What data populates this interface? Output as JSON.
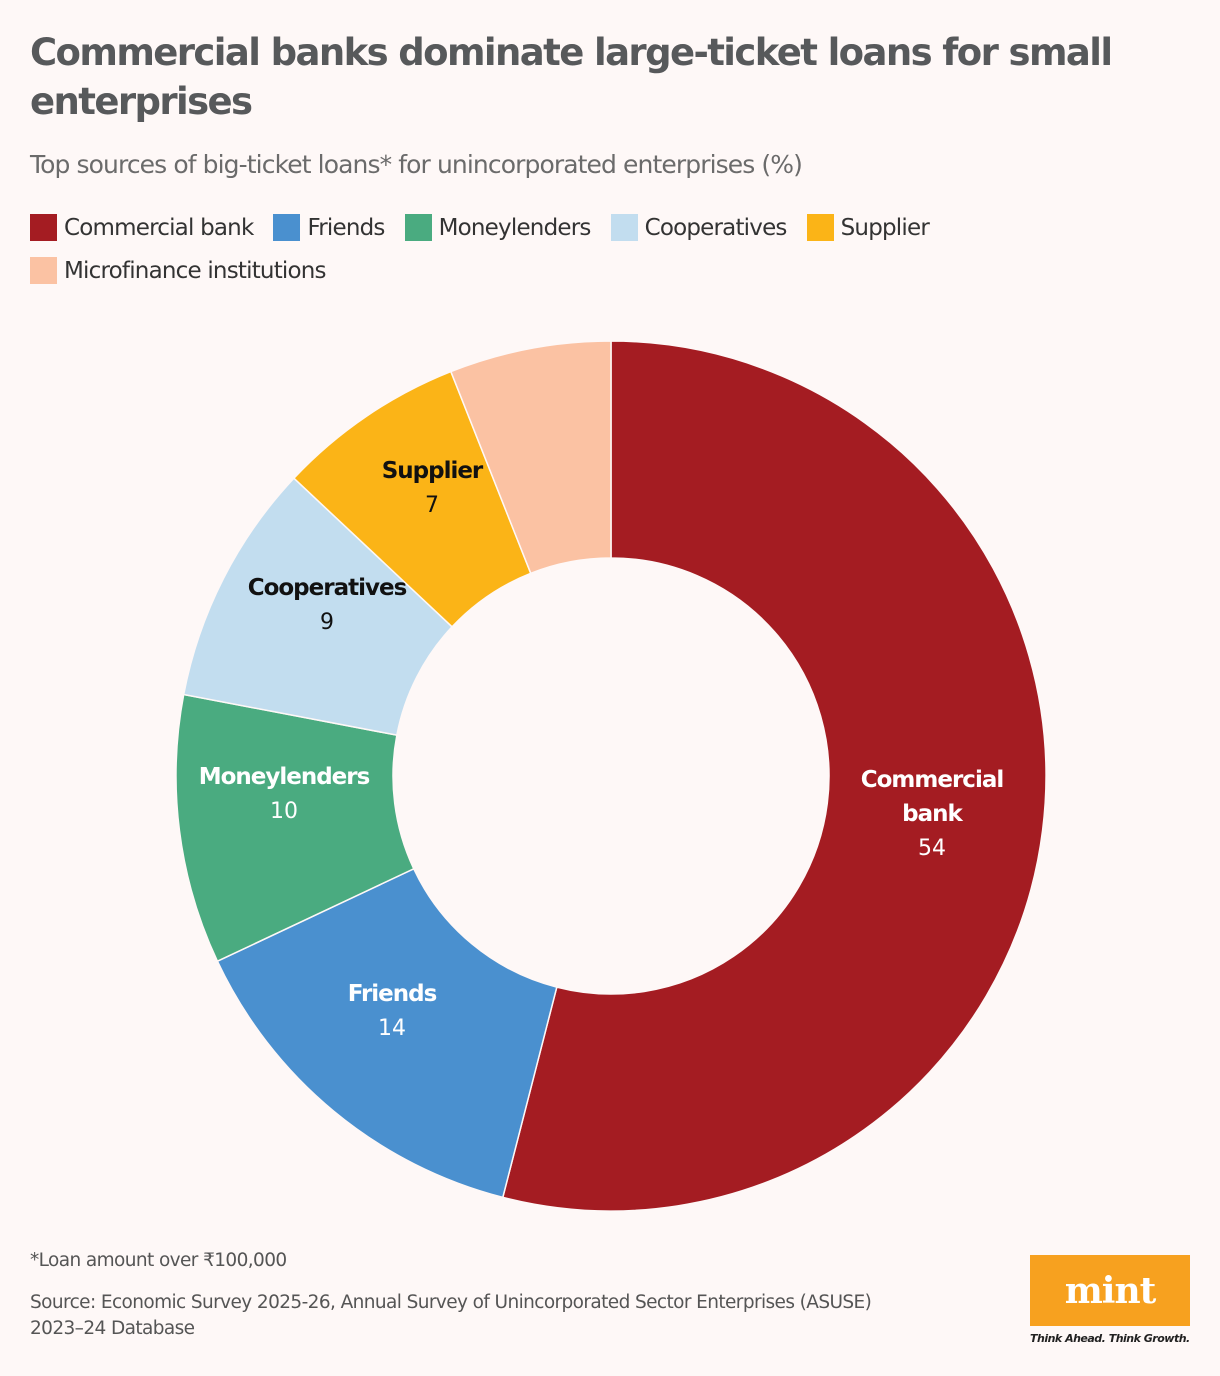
{
  "header": {
    "title": "Commercial banks dominate large-ticket loans for small enterprises",
    "subtitle": "Top sources of big-ticket loans* for unincorporated enterprises (%)"
  },
  "legend": [
    {
      "label": "Commercial bank",
      "color": "#a41c22"
    },
    {
      "label": "Friends",
      "color": "#4a90cf"
    },
    {
      "label": "Moneylenders",
      "color": "#4aab80"
    },
    {
      "label": "Cooperatives",
      "color": "#c2ddef"
    },
    {
      "label": "Supplier",
      "color": "#fbb417"
    },
    {
      "label": "Microfinance institutions",
      "color": "#fbc2a3"
    }
  ],
  "chart_data": {
    "type": "pie",
    "title": "Commercial banks dominate large-ticket loans for small enterprises",
    "subtitle": "Top sources of big-ticket loans* for unincorporated enterprises (%)",
    "donut": true,
    "categories": [
      "Commercial bank",
      "Friends",
      "Moneylenders",
      "Cooperatives",
      "Supplier",
      "Microfinance institutions"
    ],
    "values": [
      54,
      14,
      10,
      9,
      7,
      6
    ],
    "labels_shown": [
      "54",
      "14",
      "10",
      "9",
      "7",
      ""
    ],
    "colors": [
      "#a41c22",
      "#4a90cf",
      "#4aab80",
      "#c2ddef",
      "#fbb417",
      "#fbc2a3"
    ],
    "start_angle": "12 o'clock, clockwise",
    "legend_position": "top"
  },
  "footer": {
    "footnote": "*Loan amount over ₹100,000",
    "source_line1": "Source: Economic Survey 2025-26, Annual Survey of Unincorporated Sector Enterprises (ASUSE)",
    "source_line2": "2023–24 Database",
    "logo_text": "mint",
    "tagline": "Think Ahead. Think Growth."
  }
}
